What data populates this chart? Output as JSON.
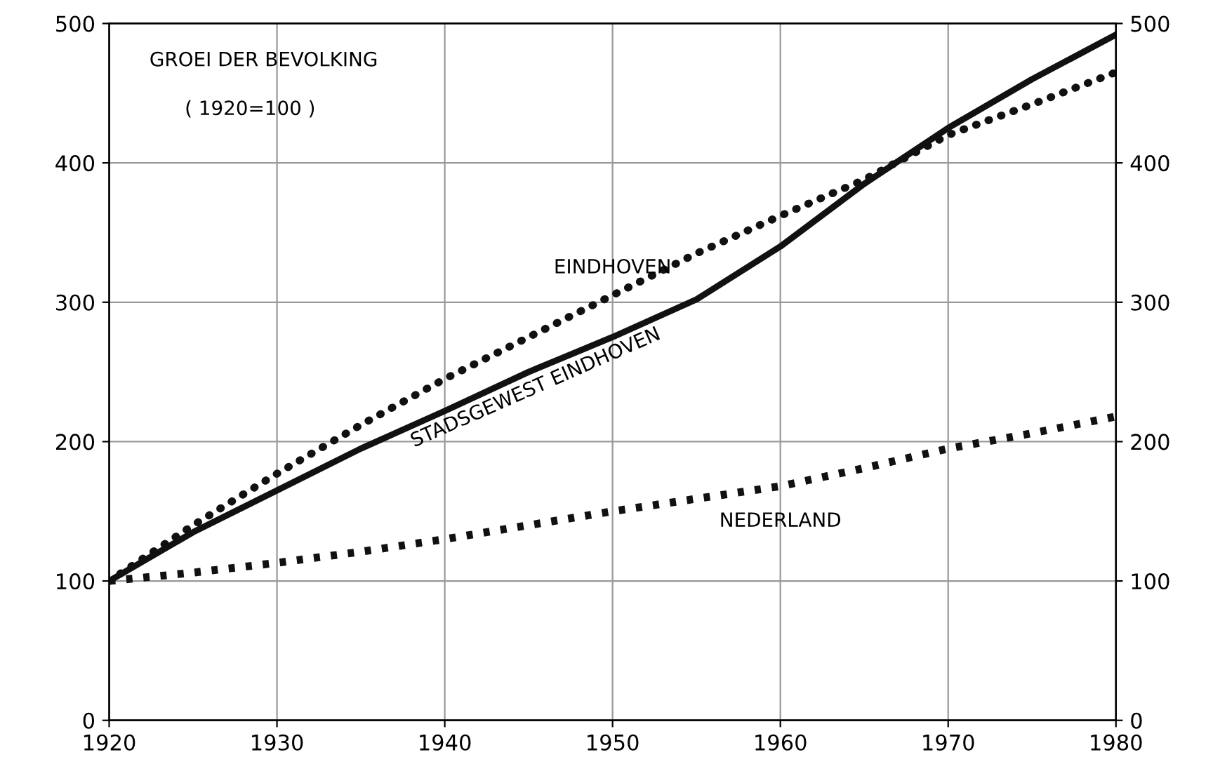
{
  "chart_data": {
    "type": "line",
    "title": "GROEI DER BEVOLKING",
    "subtitle": "( 1920=100 )",
    "x": [
      1920,
      1925,
      1930,
      1935,
      1940,
      1945,
      1950,
      1955,
      1960,
      1965,
      1970,
      1975,
      1980
    ],
    "series": [
      {
        "name": "EINDHOVEN",
        "color": "#111111",
        "line_style": "dotted",
        "values": [
          100,
          140,
          177,
          212,
          245,
          275,
          305,
          335,
          362,
          388,
          420,
          442,
          465
        ]
      },
      {
        "name": "STADSGEWEST EINDHOVEN",
        "color": "#111111",
        "line_style": "solid",
        "values": [
          100,
          135,
          165,
          195,
          222,
          250,
          275,
          302,
          340,
          385,
          425,
          460,
          492
        ]
      },
      {
        "name": "NEDERLAND",
        "color": "#111111",
        "line_style": "dashed",
        "values": [
          100,
          106,
          113,
          121,
          130,
          140,
          150,
          159,
          168,
          181,
          195,
          206,
          218
        ]
      }
    ],
    "xlim": [
      1920,
      1980
    ],
    "xticks": [
      1920,
      1930,
      1940,
      1950,
      1960,
      1970,
      1980
    ],
    "ylim": [
      0,
      500
    ],
    "yticks": [
      0,
      100,
      200,
      300,
      400,
      500
    ],
    "y2lim": [
      0,
      500
    ],
    "y2ticks": [
      0,
      100,
      200,
      300,
      400,
      500
    ],
    "grid": true,
    "legend": false
  }
}
